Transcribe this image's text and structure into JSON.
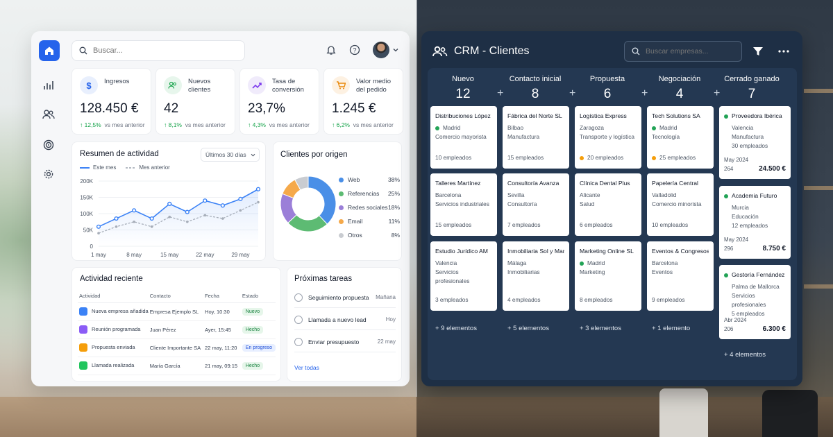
{
  "colors": {
    "accent": "#2563eb",
    "success": "#16a34a",
    "dark_panel": "#1e2f45",
    "dot_green": "#22a356",
    "dot_orange": "#f59e0b"
  },
  "sidebar": {
    "items": [
      {
        "icon": "home-icon"
      },
      {
        "icon": "bar-chart-icon"
      },
      {
        "icon": "users-icon"
      },
      {
        "icon": "target-icon"
      },
      {
        "icon": "gear-icon"
      }
    ]
  },
  "header": {
    "search_placeholder": "Buscar..."
  },
  "kpis": [
    {
      "label": "Ingresos",
      "value": "128.450 €",
      "delta": "↑ 12,5%",
      "suffix": "vs mes anterior",
      "icon": "dollar-icon"
    },
    {
      "label": "Nuevos clientes",
      "value": "42",
      "delta": "↑ 8,1%",
      "suffix": "vs mes anterior",
      "icon": "users-icon"
    },
    {
      "label": "Tasa de conversión",
      "value": "23,7%",
      "delta": "↑ 4,3%",
      "suffix": "vs mes anterior",
      "icon": "trend-icon"
    },
    {
      "label": "Valor medio del pedido",
      "value": "1.245 €",
      "delta": "↑ 6,2%",
      "suffix": "vs mes anterior",
      "icon": "cart-icon"
    }
  ],
  "activity_summary": {
    "title": "Resumen de actividad",
    "range": "Últimos 30 días",
    "legend_current": "Este mes",
    "legend_previous": "Mes anterior"
  },
  "chart_data": [
    {
      "type": "line",
      "title": "Resumen de actividad",
      "x": [
        "1 may",
        "4 may",
        "8 may",
        "11 may",
        "15 may",
        "18 may",
        "22 may",
        "25 may",
        "29 may",
        "31 may"
      ],
      "x_tick_labels": [
        "1 may",
        "8 may",
        "15 may",
        "22 may",
        "29 may"
      ],
      "y_tick_labels": [
        "200K",
        "150K",
        "100K",
        "50K",
        "0"
      ],
      "ylim": [
        0,
        200000
      ],
      "series": [
        {
          "name": "Este mes",
          "values": [
            60000,
            85000,
            110000,
            85000,
            130000,
            105000,
            140000,
            125000,
            145000,
            175000
          ]
        },
        {
          "name": "Mes anterior",
          "values": [
            40000,
            60000,
            75000,
            60000,
            90000,
            75000,
            95000,
            85000,
            110000,
            135000
          ]
        }
      ]
    },
    {
      "type": "pie",
      "title": "Clientes por origen",
      "categories": [
        "Web",
        "Referencias",
        "Redes sociales",
        "Email",
        "Otros"
      ],
      "values": [
        38,
        25,
        18,
        11,
        8
      ],
      "labels": [
        "38%",
        "25%",
        "18%",
        "11%",
        "8%"
      ],
      "colors": [
        "#4a8fe7",
        "#5dbb73",
        "#9b7fd8",
        "#f5a94a",
        "#c9ccd1"
      ]
    }
  ],
  "recent_activity": {
    "title": "Actividad reciente",
    "columns": [
      "Actividad",
      "Contacto",
      "Fecha",
      "Estado"
    ],
    "rows": [
      {
        "activity": "Nueva empresa añadida",
        "contact": "Empresa Ejemplo SL",
        "date": "Hoy, 10:30",
        "status": "Nuevo",
        "icon_color": "#3b82f6",
        "pill_bg": "#e6f6ea",
        "pill_fg": "#15803d"
      },
      {
        "activity": "Reunión programada",
        "contact": "Juan Pérez",
        "date": "Ayer, 15:45",
        "status": "Hecho",
        "icon_color": "#8b5cf6",
        "pill_bg": "#e6f6ea",
        "pill_fg": "#15803d"
      },
      {
        "activity": "Propuesta enviada",
        "contact": "Cliente Importante SA",
        "date": "22 may, 11:20",
        "status": "En progreso",
        "icon_color": "#f59e0b",
        "pill_bg": "#e8efff",
        "pill_fg": "#1d4ed8"
      },
      {
        "activity": "Llamada realizada",
        "contact": "María García",
        "date": "21 may, 09:15",
        "status": "Hecho",
        "icon_color": "#22c55e",
        "pill_bg": "#e6f6ea",
        "pill_fg": "#15803d"
      }
    ]
  },
  "tasks": {
    "title": "Próximas tareas",
    "items": [
      {
        "label": "Seguimiento propuesta",
        "date": "Mañana"
      },
      {
        "label": "Llamada a nuevo lead",
        "date": "Hoy"
      },
      {
        "label": "Enviar presupuesto",
        "date": "22 may"
      }
    ],
    "view_all": "Ver todas"
  },
  "crm": {
    "title": "CRM - Clientes",
    "search_placeholder": "Buscar empresas...",
    "columns": [
      {
        "name": "Nuevo",
        "count": "12",
        "more": "+ 9 elementos",
        "cards": [
          {
            "name": "Distribuciones López",
            "city": "Madrid",
            "sector": "Comercio mayorista",
            "employees": "10 empleados",
            "dot": "green"
          },
          {
            "name": "Talleres Martínez",
            "city": "Barcelona",
            "sector": "Servicios industriales",
            "employees": "15 empleados",
            "dot": ""
          },
          {
            "name": "Estudio Jurídico AM",
            "city": "Valencia",
            "sector": "Servicios profesionales",
            "employees": "3 empleados",
            "dot": ""
          }
        ]
      },
      {
        "name": "Contacto inicial",
        "count": "8",
        "more": "+ 5 elementos",
        "cards": [
          {
            "name": "Fábrica del Norte SL",
            "city": "Bilbao",
            "sector": "Manufactura",
            "employees": "15 empleados",
            "dot": ""
          },
          {
            "name": "Consultoría Avanza",
            "city": "Sevilla",
            "sector": "Consultoría",
            "employees": "7 empleados",
            "dot": ""
          },
          {
            "name": "Inmobiliaria Sol y Mar",
            "city": "Málaga",
            "sector": "Inmobiliarias",
            "employees": "4 empleados",
            "dot": ""
          }
        ]
      },
      {
        "name": "Propuesta",
        "count": "6",
        "more": "+ 3 elementos",
        "cards": [
          {
            "name": "Logística Express",
            "city": "Zaragoza",
            "sector": "Transporte y logística",
            "employees": "20 empleados",
            "dot": "",
            "emp_dot": "orange"
          },
          {
            "name": "Clínica Dental Plus",
            "city": "Alicante",
            "sector": "Salud",
            "employees": "6 empleados",
            "dot": ""
          },
          {
            "name": "Marketing Online SL",
            "city": "Madrid",
            "sector": "Marketing",
            "employees": "8 empleados",
            "dot": "green"
          }
        ]
      },
      {
        "name": "Negociación",
        "count": "4",
        "more": "+ 1 elemento",
        "cards": [
          {
            "name": "Tech Solutions SA",
            "city": "Madrid",
            "sector": "Tecnología",
            "employees": "25 empleados",
            "dot": "green",
            "emp_dot": "orange"
          },
          {
            "name": "Papelería Central",
            "city": "Valladolid",
            "sector": "Comercio minorista",
            "employees": "10 empleados",
            "dot": ""
          },
          {
            "name": "Eventos & Congresos",
            "city": "Barcelona",
            "sector": "Eventos",
            "employees": "9 empleados",
            "dot": ""
          }
        ]
      },
      {
        "name": "Cerrado ganado",
        "count": "7",
        "more": "+ 4 elementos",
        "cards": [
          {
            "name": "Proveedora Ibérica",
            "city": "Valencia",
            "sector": "Manufactura",
            "employees": "30 empleados",
            "date": "May 2024",
            "code": "264",
            "amount": "24.500 €",
            "dot": "green"
          },
          {
            "name": "Academia Futuro",
            "city": "Murcia",
            "sector": "Educación",
            "employees": "12 empleados",
            "date": "May 2024",
            "code": "296",
            "amount": "8.750 €",
            "dot": "green"
          },
          {
            "name": "Gestoría Fernández",
            "city": "Palma de Mallorca",
            "sector": "Servicios profesionales",
            "employees": "5 empleados",
            "date": "Abr 2024",
            "code": "206",
            "amount": "6.300 €",
            "dot": "green"
          }
        ]
      }
    ]
  }
}
